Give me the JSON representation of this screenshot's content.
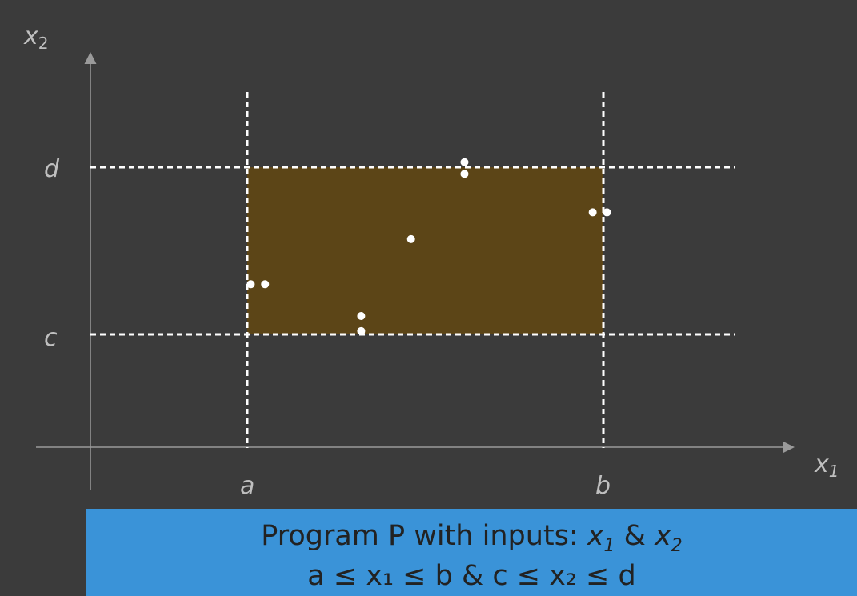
{
  "diagram": {
    "axis_x_label": "x",
    "axis_x_sub": "1",
    "axis_y_label": "x",
    "axis_y_sub": "2",
    "tick_a": "a",
    "tick_b": "b",
    "tick_c": "c",
    "tick_d": "d",
    "region_color": "#5c4517",
    "point_color": "#ffffff",
    "points": [
      {
        "x": 0.01,
        "y": 0.3
      },
      {
        "x": 0.05,
        "y": 0.3
      },
      {
        "x": 0.32,
        "y": 0.11
      },
      {
        "x": 0.32,
        "y": 0.02
      },
      {
        "x": 0.46,
        "y": 0.57
      },
      {
        "x": 0.61,
        "y": 1.03
      },
      {
        "x": 0.61,
        "y": 0.96
      },
      {
        "x": 0.97,
        "y": 0.73
      },
      {
        "x": 1.01,
        "y": 0.73
      }
    ]
  },
  "banner": {
    "line1_prefix": "Program P with inputs: ",
    "line1_x1": "x",
    "line1_x1_sub": "1",
    "line1_amp": " & ",
    "line1_x2": "x",
    "line1_x2_sub": "2",
    "line2": "a ≤ x₁ ≤ b  &  c ≤ x₂ ≤ d"
  }
}
